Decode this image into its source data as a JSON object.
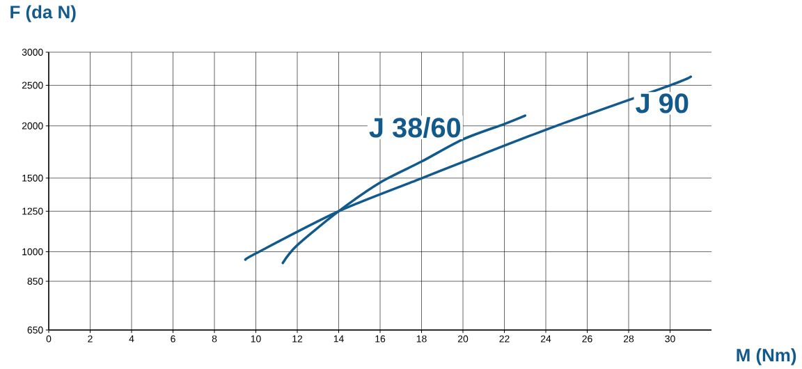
{
  "chart_data": {
    "type": "line",
    "xlabel": "M (Nm)",
    "ylabel": "F (da N)",
    "series": [
      {
        "name": "J 38/60",
        "color": "#135a8c",
        "x": [
          11.3,
          12,
          14,
          16,
          18,
          20,
          22,
          23
        ],
        "values": [
          940,
          1037,
          1250,
          1464,
          1643,
          1857,
          2021,
          2116
        ]
      },
      {
        "name": "J 90",
        "color": "#135a8c",
        "x": [
          9.5,
          10,
          14,
          18,
          20,
          24.5,
          30,
          31
        ],
        "values": [
          957,
          991,
          1250,
          1498,
          1640,
          2000,
          2500,
          2622
        ]
      }
    ],
    "xlim": [
      0,
      32
    ],
    "xticks": [
      0,
      2,
      4,
      6,
      8,
      10,
      12,
      14,
      16,
      18,
      20,
      22,
      24,
      26,
      28,
      30
    ],
    "ylim": [
      650,
      3000
    ],
    "yticks": [
      650,
      850,
      1000,
      1250,
      1500,
      2000,
      2500,
      3000
    ],
    "log": "y",
    "grid": true,
    "legend": false,
    "marker": "none",
    "line_style": "solid"
  }
}
